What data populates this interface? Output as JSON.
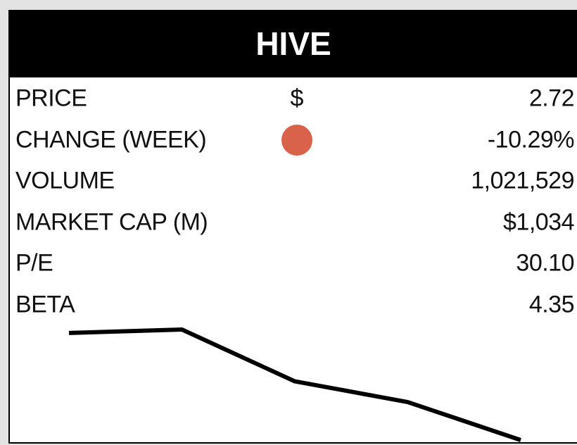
{
  "header": {
    "title": "HIVE"
  },
  "rows": [
    {
      "label": "PRICE",
      "symbol": "$",
      "value": "2.72"
    },
    {
      "label": "CHANGE (WEEK)",
      "indicator_color": "#d9634a",
      "value": "-10.29%"
    },
    {
      "label": "VOLUME",
      "value": "1,021,529"
    },
    {
      "label": "MARKET CAP (M)",
      "value": "$1,034"
    },
    {
      "label": "P/E",
      "value": "30.10"
    },
    {
      "label": "BETA",
      "value": "4.35"
    }
  ],
  "sparkline": {
    "type": "line",
    "color": "#000000",
    "values": [
      3.03,
      3.04,
      2.89,
      2.83,
      2.72
    ]
  }
}
